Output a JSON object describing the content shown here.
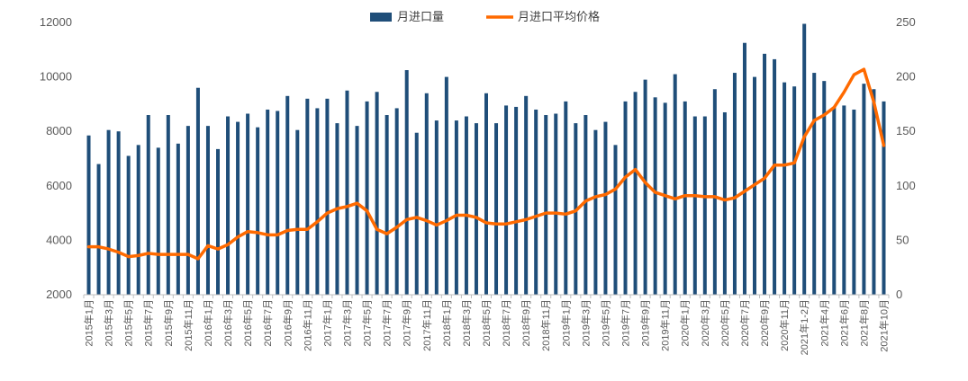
{
  "chart_data": {
    "type": "bar+line",
    "title": "",
    "legend_position": "top-center",
    "legend": {
      "bar_label": "月进口量",
      "line_label": "月进口平均价格"
    },
    "colors": {
      "bar": "#1f4e79",
      "line": "#ff6a00",
      "axis": "#bfbfbf",
      "text": "#595959"
    },
    "y_left": {
      "min": 2000,
      "max": 12000,
      "ticks": [
        "2000",
        "4000",
        "6000",
        "8000",
        "10000",
        "12000"
      ]
    },
    "y_right": {
      "min": 0,
      "max": 250,
      "ticks": [
        "0",
        "50",
        "100",
        "150",
        "200",
        "250"
      ]
    },
    "x_tick_labels": [
      {
        "index": 0,
        "label": "2015年1月"
      },
      {
        "index": 2,
        "label": "2015年3月"
      },
      {
        "index": 4,
        "label": "2015年5月"
      },
      {
        "index": 6,
        "label": "2015年7月"
      },
      {
        "index": 8,
        "label": "2015年9月"
      },
      {
        "index": 10,
        "label": "2015年11月"
      },
      {
        "index": 12,
        "label": "2016年1月"
      },
      {
        "index": 14,
        "label": "2016年3月"
      },
      {
        "index": 16,
        "label": "2016年5月"
      },
      {
        "index": 18,
        "label": "2016年7月"
      },
      {
        "index": 20,
        "label": "2016年9月"
      },
      {
        "index": 22,
        "label": "2016年11月"
      },
      {
        "index": 24,
        "label": "2017年1月"
      },
      {
        "index": 26,
        "label": "2017年3月"
      },
      {
        "index": 28,
        "label": "2017年5月"
      },
      {
        "index": 30,
        "label": "2017年7月"
      },
      {
        "index": 32,
        "label": "2017年9月"
      },
      {
        "index": 34,
        "label": "2017年11月"
      },
      {
        "index": 36,
        "label": "2018年1月"
      },
      {
        "index": 38,
        "label": "2018年3月"
      },
      {
        "index": 40,
        "label": "2018年5月"
      },
      {
        "index": 42,
        "label": "2018年7月"
      },
      {
        "index": 44,
        "label": "2018年9月"
      },
      {
        "index": 46,
        "label": "2018年11月"
      },
      {
        "index": 48,
        "label": "2019年1月"
      },
      {
        "index": 50,
        "label": "2019年3月"
      },
      {
        "index": 52,
        "label": "2019年5月"
      },
      {
        "index": 54,
        "label": "2019年7月"
      },
      {
        "index": 56,
        "label": "2019年9月"
      },
      {
        "index": 58,
        "label": "2019年11月"
      },
      {
        "index": 60,
        "label": "2020年1月"
      },
      {
        "index": 62,
        "label": "2020年3月"
      },
      {
        "index": 64,
        "label": "2020年5月"
      },
      {
        "index": 66,
        "label": "2020年7月"
      },
      {
        "index": 68,
        "label": "2020年9月"
      },
      {
        "index": 70,
        "label": "2020年11月"
      },
      {
        "index": 72,
        "label": "2021年1-2月"
      },
      {
        "index": 74,
        "label": "2021年4月"
      },
      {
        "index": 76,
        "label": "2021年6月"
      },
      {
        "index": 78,
        "label": "2021年8月"
      },
      {
        "index": 80,
        "label": "2021年10月"
      }
    ],
    "series": [
      {
        "name": "月进口量",
        "type": "bar",
        "axis": "left",
        "values": [
          7850,
          6800,
          8050,
          8000,
          7100,
          7500,
          8600,
          7400,
          8600,
          7550,
          8200,
          9600,
          8200,
          7350,
          8550,
          8350,
          8650,
          8150,
          8800,
          8750,
          9300,
          8050,
          9200,
          8850,
          9200,
          8300,
          9500,
          8200,
          9100,
          9450,
          8600,
          8850,
          10250,
          7950,
          9400,
          8400,
          10000,
          8400,
          8550,
          8300,
          9400,
          8300,
          8950,
          8900,
          9300,
          8800,
          8600,
          8650,
          9100,
          8300,
          8600,
          8050,
          8350,
          7500,
          9100,
          9450,
          9900,
          9250,
          9050,
          10100,
          9100,
          8550,
          8550,
          9550,
          8700,
          10150,
          11250,
          10000,
          10850,
          10650,
          9800,
          9650,
          11950,
          10150,
          9850,
          8900,
          8950,
          8800,
          9750,
          9550,
          9100
        ]
      },
      {
        "name": "月进口平均价格",
        "type": "line",
        "axis": "right",
        "values": [
          44,
          44,
          42,
          39,
          35,
          36,
          38,
          37,
          37,
          37,
          37,
          33,
          45,
          42,
          46,
          53,
          58,
          57,
          55,
          55,
          59,
          60,
          60,
          67,
          75,
          79,
          81,
          84,
          77,
          60,
          56,
          62,
          69,
          71,
          68,
          64,
          68,
          73,
          73,
          71,
          66,
          65,
          65,
          67,
          69,
          72,
          75,
          75,
          74,
          77,
          86,
          90,
          92,
          97,
          108,
          115,
          103,
          94,
          91,
          88,
          91,
          91,
          90,
          90,
          87,
          89,
          95,
          101,
          107,
          119,
          119,
          121,
          145,
          160,
          165,
          172,
          186,
          202,
          207,
          177,
          137
        ]
      }
    ]
  }
}
